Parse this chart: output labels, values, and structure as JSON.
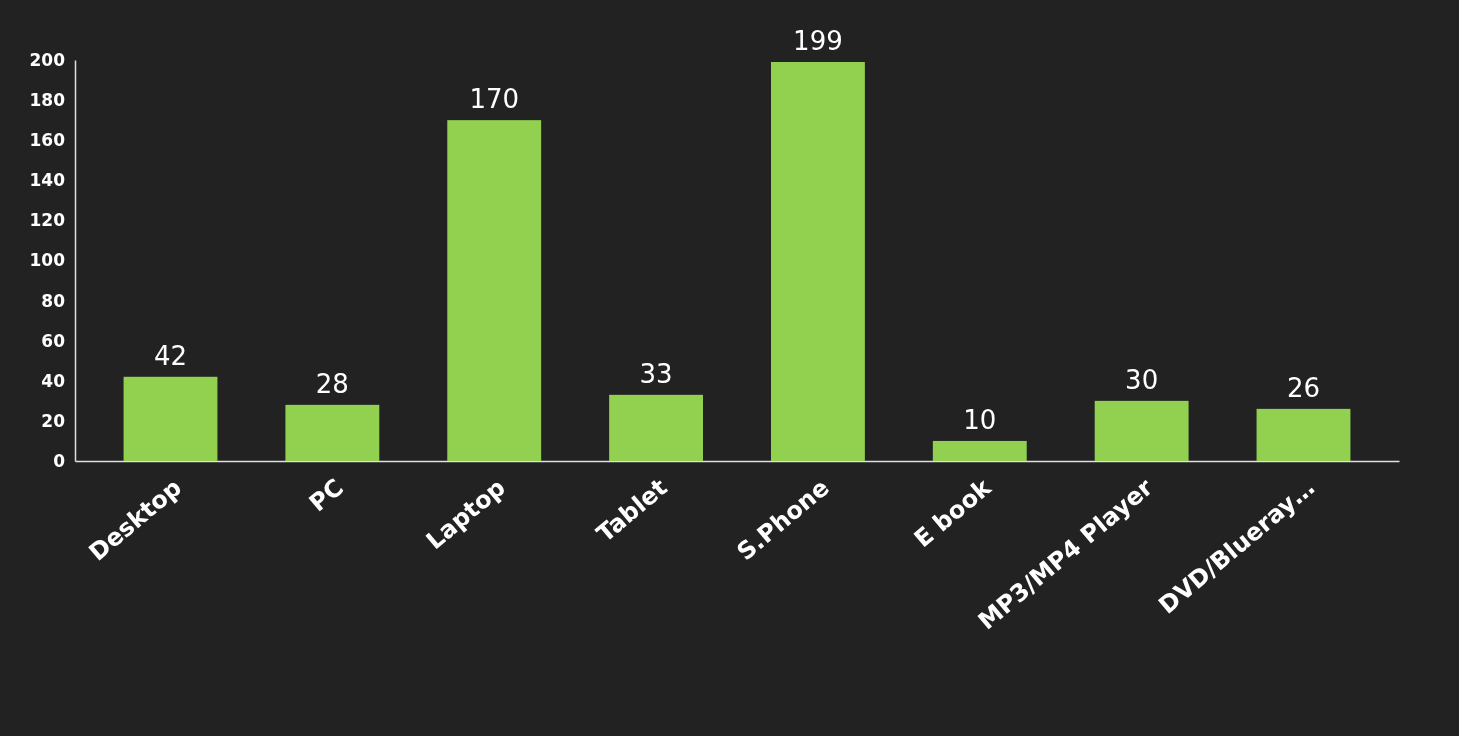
{
  "chart_data": {
    "type": "bar",
    "categories": [
      "Desktop",
      "PC",
      "Laptop",
      "Tablet",
      "S.Phone",
      "E book",
      "MP3/MP4 Player",
      "DVD/Blueray…"
    ],
    "values": [
      42,
      28,
      170,
      33,
      199,
      10,
      30,
      26
    ],
    "color": "#92d050",
    "ylim": [
      0,
      200
    ],
    "yticks": [
      0,
      20,
      40,
      60,
      80,
      100,
      120,
      140,
      160,
      180,
      200
    ],
    "data_labels": true
  }
}
